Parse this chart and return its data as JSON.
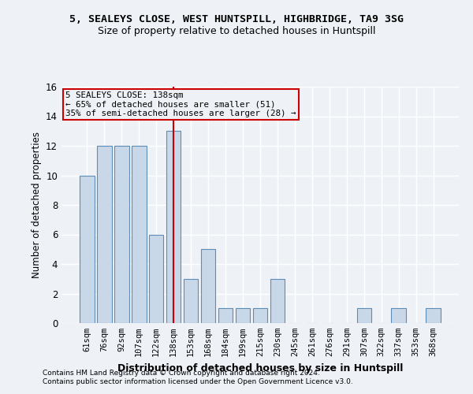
{
  "title1": "5, SEALEYS CLOSE, WEST HUNTSPILL, HIGHBRIDGE, TA9 3SG",
  "title2": "Size of property relative to detached houses in Huntspill",
  "xlabel": "Distribution of detached houses by size in Huntspill",
  "ylabel": "Number of detached properties",
  "categories": [
    "61sqm",
    "76sqm",
    "92sqm",
    "107sqm",
    "122sqm",
    "138sqm",
    "153sqm",
    "168sqm",
    "184sqm",
    "199sqm",
    "215sqm",
    "230sqm",
    "245sqm",
    "261sqm",
    "276sqm",
    "291sqm",
    "307sqm",
    "322sqm",
    "337sqm",
    "353sqm",
    "368sqm"
  ],
  "values": [
    10,
    12,
    12,
    12,
    6,
    13,
    3,
    5,
    1,
    1,
    1,
    3,
    0,
    0,
    0,
    0,
    1,
    0,
    1,
    0,
    1
  ],
  "highlight_index": 5,
  "bar_color": "#c8d8e8",
  "bar_edge_color": "#5b8db8",
  "highlight_line_color": "#cc0000",
  "annotation_line1": "5 SEALEYS CLOSE: 138sqm",
  "annotation_line2": "← 65% of detached houses are smaller (51)",
  "annotation_line3": "35% of semi-detached houses are larger (28) →",
  "annotation_box_color": "#cc0000",
  "footer1": "Contains HM Land Registry data © Crown copyright and database right 2024.",
  "footer2": "Contains public sector information licensed under the Open Government Licence v3.0.",
  "ylim_max": 16,
  "yticks": [
    0,
    2,
    4,
    6,
    8,
    10,
    12,
    14,
    16
  ],
  "background_color": "#eef2f7",
  "grid_color": "#ffffff",
  "title1_fontsize": 9.5,
  "title2_fontsize": 9.0,
  "ylabel_fontsize": 8.5,
  "xlabel_fontsize": 9.0,
  "tick_fontsize": 7.5,
  "ytick_fontsize": 8.5,
  "footer_fontsize": 6.5,
  "ann_fontsize": 7.8
}
